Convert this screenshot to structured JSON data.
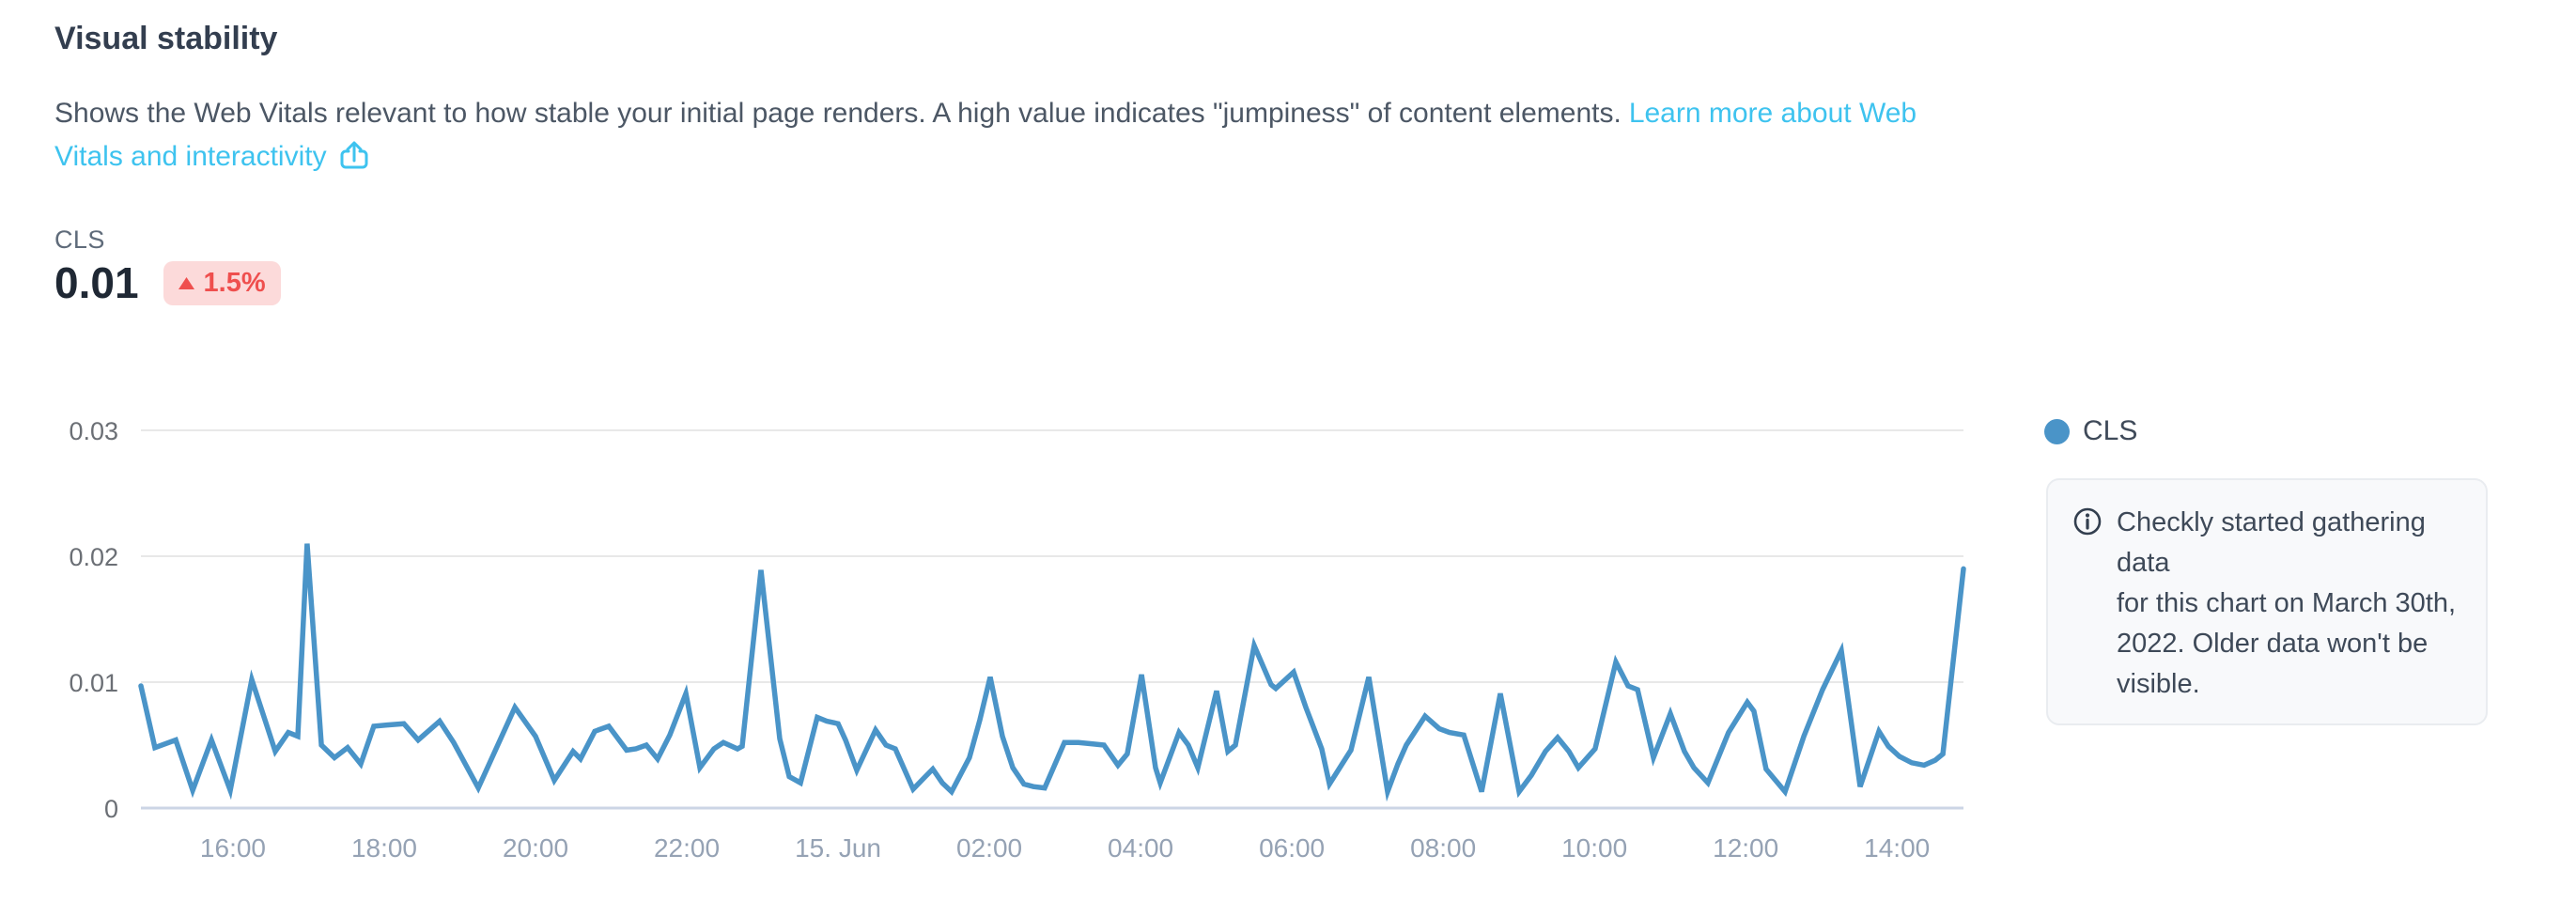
{
  "panel": {
    "title": "Visual stability",
    "description": {
      "text": "Shows the Web Vitals relevant to how stable your initial page renders. A high value indicates \"jumpiness\" of content elements.",
      "link_line1": "Learn more about Web",
      "link_line2": "Vitals and interactivity",
      "link_icon": "external-share-icon",
      "link_color": "#3EC3EF"
    },
    "metric": {
      "label": "CLS",
      "value": "0.01",
      "delta": "1.5%",
      "delta_direction": "up",
      "delta_bg": "#FCDADA",
      "delta_fg": "#EF4F4E"
    },
    "legend": {
      "series": "CLS",
      "dot_color": "#4A94C8"
    },
    "info_note": {
      "icon": "info-circle-icon",
      "text": "Checkly started gathering data for this chart on March 30th, 2022. Older data won't be visible.",
      "lines": [
        "Checkly started gathering data",
        "for this chart on March 30th,",
        "2022. Older data won't be",
        "visible."
      ]
    }
  },
  "chart_data": {
    "type": "line",
    "title": "",
    "series_name": "CLS",
    "line_color": "#4A94C8",
    "grid": "horizontal",
    "legend_position": "right",
    "xlabel": "",
    "ylabel": "",
    "ylim": [
      0,
      0.03
    ],
    "y_ticks": [
      {
        "value": 0,
        "label": "0"
      },
      {
        "value": 0.01,
        "label": "0.01"
      },
      {
        "value": 0.02,
        "label": "0.02"
      },
      {
        "value": 0.03,
        "label": "0.03"
      }
    ],
    "x_ticks": [
      "16:00",
      "18:00",
      "20:00",
      "22:00",
      "15. Jun",
      "02:00",
      "04:00",
      "06:00",
      "08:00",
      "10:00",
      "12:00",
      "14:00"
    ],
    "points": [
      [
        0,
        0.0097
      ],
      [
        0.0077,
        0.0048
      ],
      [
        0.0191,
        0.0054
      ],
      [
        0.0284,
        0.0014
      ],
      [
        0.0387,
        0.0054
      ],
      [
        0.049,
        0.0014
      ],
      [
        0.0608,
        0.0102
      ],
      [
        0.0737,
        0.0045
      ],
      [
        0.0809,
        0.006
      ],
      [
        0.0861,
        0.0057
      ],
      [
        0.0912,
        0.021
      ],
      [
        0.099,
        0.005
      ],
      [
        0.1062,
        0.004
      ],
      [
        0.1134,
        0.0048
      ],
      [
        0.1206,
        0.0035
      ],
      [
        0.1278,
        0.0065
      ],
      [
        0.1351,
        0.0066
      ],
      [
        0.1443,
        0.0067
      ],
      [
        0.1521,
        0.0054
      ],
      [
        0.1639,
        0.0069
      ],
      [
        0.1716,
        0.0052
      ],
      [
        0.1851,
        0.0016
      ],
      [
        0.2052,
        0.008
      ],
      [
        0.2165,
        0.0057
      ],
      [
        0.2268,
        0.0022
      ],
      [
        0.2371,
        0.0045
      ],
      [
        0.2412,
        0.0039
      ],
      [
        0.249,
        0.0061
      ],
      [
        0.2567,
        0.0065
      ],
      [
        0.2665,
        0.0046
      ],
      [
        0.2716,
        0.0047
      ],
      [
        0.2773,
        0.005
      ],
      [
        0.2835,
        0.0039
      ],
      [
        0.2902,
        0.0058
      ],
      [
        0.299,
        0.0091
      ],
      [
        0.3067,
        0.0032
      ],
      [
        0.3144,
        0.0047
      ],
      [
        0.3196,
        0.0052
      ],
      [
        0.3273,
        0.0047
      ],
      [
        0.3299,
        0.0049
      ],
      [
        0.3402,
        0.0189
      ],
      [
        0.3505,
        0.0055
      ],
      [
        0.3557,
        0.0025
      ],
      [
        0.3619,
        0.002
      ],
      [
        0.3711,
        0.0072
      ],
      [
        0.3763,
        0.0069
      ],
      [
        0.3825,
        0.0067
      ],
      [
        0.3866,
        0.0054
      ],
      [
        0.3928,
        0.003
      ],
      [
        0.4031,
        0.0062
      ],
      [
        0.4088,
        0.005
      ],
      [
        0.4139,
        0.0047
      ],
      [
        0.4237,
        0.0015
      ],
      [
        0.4304,
        0.0025
      ],
      [
        0.4345,
        0.0031
      ],
      [
        0.4397,
        0.002
      ],
      [
        0.4448,
        0.0013
      ],
      [
        0.4546,
        0.004
      ],
      [
        0.4603,
        0.007
      ],
      [
        0.466,
        0.0104
      ],
      [
        0.4727,
        0.0057
      ],
      [
        0.4784,
        0.0032
      ],
      [
        0.4845,
        0.0019
      ],
      [
        0.4897,
        0.0017
      ],
      [
        0.4959,
        0.0016
      ],
      [
        0.5067,
        0.0052
      ],
      [
        0.5144,
        0.0052
      ],
      [
        0.5222,
        0.0051
      ],
      [
        0.5284,
        0.005
      ],
      [
        0.5361,
        0.0034
      ],
      [
        0.5412,
        0.0043
      ],
      [
        0.549,
        0.0106
      ],
      [
        0.5567,
        0.0032
      ],
      [
        0.5593,
        0.002
      ],
      [
        0.5696,
        0.006
      ],
      [
        0.5747,
        0.005
      ],
      [
        0.5799,
        0.0032
      ],
      [
        0.5902,
        0.0093
      ],
      [
        0.5964,
        0.0045
      ],
      [
        0.6005,
        0.005
      ],
      [
        0.6108,
        0.0129
      ],
      [
        0.6201,
        0.0098
      ],
      [
        0.6227,
        0.0095
      ],
      [
        0.6325,
        0.0108
      ],
      [
        0.6392,
        0.008
      ],
      [
        0.6479,
        0.0047
      ],
      [
        0.6521,
        0.0019
      ],
      [
        0.6613,
        0.004
      ],
      [
        0.6639,
        0.0046
      ],
      [
        0.6737,
        0.0104
      ],
      [
        0.684,
        0.0013
      ],
      [
        0.6897,
        0.0035
      ],
      [
        0.6943,
        0.005
      ],
      [
        0.7046,
        0.0073
      ],
      [
        0.7124,
        0.0063
      ],
      [
        0.718,
        0.006
      ],
      [
        0.7258,
        0.0058
      ],
      [
        0.7356,
        0.0013
      ],
      [
        0.7459,
        0.0091
      ],
      [
        0.7562,
        0.0013
      ],
      [
        0.7629,
        0.0026
      ],
      [
        0.7706,
        0.0045
      ],
      [
        0.7773,
        0.0056
      ],
      [
        0.7835,
        0.0045
      ],
      [
        0.7887,
        0.0032
      ],
      [
        0.7979,
        0.0047
      ],
      [
        0.8093,
        0.0116
      ],
      [
        0.816,
        0.0097
      ],
      [
        0.8212,
        0.0094
      ],
      [
        0.8299,
        0.004
      ],
      [
        0.8392,
        0.0075
      ],
      [
        0.8469,
        0.0045
      ],
      [
        0.8521,
        0.0032
      ],
      [
        0.8598,
        0.002
      ],
      [
        0.8711,
        0.006
      ],
      [
        0.8814,
        0.0084
      ],
      [
        0.885,
        0.0077
      ],
      [
        0.8917,
        0.0031
      ],
      [
        0.9021,
        0.0013
      ],
      [
        0.9124,
        0.0057
      ],
      [
        0.9227,
        0.0094
      ],
      [
        0.933,
        0.0125
      ],
      [
        0.9433,
        0.0017
      ],
      [
        0.9536,
        0.0061
      ],
      [
        0.9588,
        0.0049
      ],
      [
        0.9649,
        0.0041
      ],
      [
        0.9716,
        0.0036
      ],
      [
        0.9784,
        0.0034
      ],
      [
        0.9845,
        0.0038
      ],
      [
        0.9887,
        0.0043
      ],
      [
        1,
        0.019
      ]
    ]
  }
}
